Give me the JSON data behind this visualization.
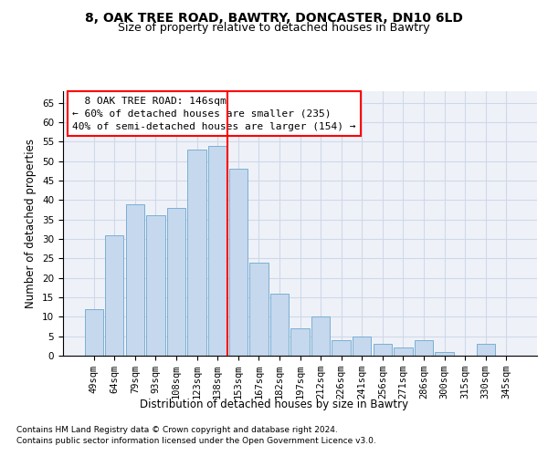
{
  "title_line1": "8, OAK TREE ROAD, BAWTRY, DONCASTER, DN10 6LD",
  "title_line2": "Size of property relative to detached houses in Bawtry",
  "xlabel": "Distribution of detached houses by size in Bawtry",
  "ylabel": "Number of detached properties",
  "categories": [
    "49sqm",
    "64sqm",
    "79sqm",
    "93sqm",
    "108sqm",
    "123sqm",
    "138sqm",
    "153sqm",
    "167sqm",
    "182sqm",
    "197sqm",
    "212sqm",
    "226sqm",
    "241sqm",
    "256sqm",
    "271sqm",
    "286sqm",
    "300sqm",
    "315sqm",
    "330sqm",
    "345sqm"
  ],
  "values": [
    12,
    31,
    39,
    36,
    38,
    53,
    54,
    48,
    24,
    16,
    7,
    10,
    4,
    5,
    3,
    2,
    4,
    1,
    0,
    3,
    0
  ],
  "bar_color": "#c5d8ed",
  "bar_edge_color": "#7bafd4",
  "vline_x": 7,
  "vline_color": "red",
  "annotation_text": "  8 OAK TREE ROAD: 146sqm  \n← 60% of detached houses are smaller (235)\n40% of semi-detached houses are larger (154) →",
  "annotation_box_color": "white",
  "annotation_box_edge_color": "red",
  "ylim": [
    0,
    68
  ],
  "yticks": [
    0,
    5,
    10,
    15,
    20,
    25,
    30,
    35,
    40,
    45,
    50,
    55,
    60,
    65
  ],
  "grid_color": "#d0d8e8",
  "background_color": "#eef2f8",
  "footer_line1": "Contains HM Land Registry data © Crown copyright and database right 2024.",
  "footer_line2": "Contains public sector information licensed under the Open Government Licence v3.0.",
  "title_fontsize": 10,
  "subtitle_fontsize": 9,
  "tick_fontsize": 7.5,
  "ylabel_fontsize": 8.5,
  "xlabel_fontsize": 8.5,
  "annotation_fontsize": 8,
  "footer_fontsize": 6.5
}
